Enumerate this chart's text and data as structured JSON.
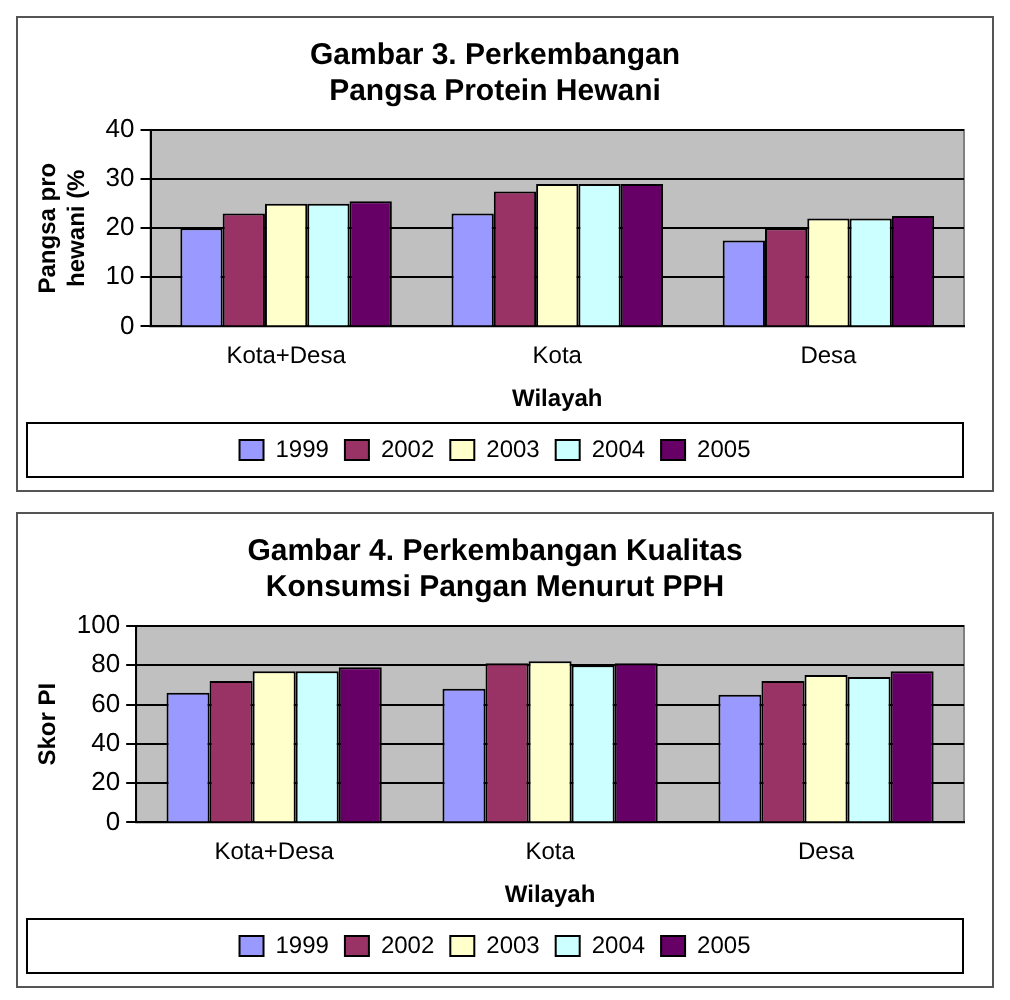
{
  "chart_data": [
    {
      "type": "bar",
      "title": "Gambar 3. Perkembangan Pangsa Protein Hewani",
      "xlabel": "Wilayah",
      "ylabel": "Pangsa pro hewani (%",
      "categories": [
        "Kota+Desa",
        "Kota",
        "Desa"
      ],
      "series": [
        {
          "name": "1999",
          "color": "#9999ff",
          "values": [
            20,
            23,
            17.5
          ]
        },
        {
          "name": "2002",
          "color": "#993366",
          "values": [
            23,
            27.5,
            20
          ]
        },
        {
          "name": "2003",
          "color": "#ffffcc",
          "values": [
            25,
            29,
            22
          ]
        },
        {
          "name": "2004",
          "color": "#ccffff",
          "values": [
            25,
            29,
            22
          ]
        },
        {
          "name": "2005",
          "color": "#660066",
          "values": [
            25.5,
            29,
            22.5
          ]
        }
      ],
      "ylim": [
        0,
        40
      ],
      "yticks": [
        0,
        10,
        20,
        30,
        40
      ],
      "grid": "y",
      "legend": "bottom"
    },
    {
      "type": "bar",
      "title": "Gambar 4. Perkembangan Kualitas Konsumsi Pangan Menurut PPH",
      "xlabel": "Wilayah",
      "ylabel": "Skor PI",
      "categories": [
        "Kota+Desa",
        "Kota",
        "Desa"
      ],
      "series": [
        {
          "name": "1999",
          "color": "#9999ff",
          "values": [
            66,
            68,
            65
          ]
        },
        {
          "name": "2002",
          "color": "#993366",
          "values": [
            72,
            81,
            72
          ]
        },
        {
          "name": "2003",
          "color": "#ffffcc",
          "values": [
            77,
            82,
            75
          ]
        },
        {
          "name": "2004",
          "color": "#ccffff",
          "values": [
            77,
            80,
            74
          ]
        },
        {
          "name": "2005",
          "color": "#660066",
          "values": [
            79,
            81,
            77
          ]
        }
      ],
      "ylim": [
        0,
        100
      ],
      "yticks": [
        0,
        20,
        40,
        60,
        80,
        100
      ],
      "grid": "y",
      "legend": "bottom"
    }
  ]
}
